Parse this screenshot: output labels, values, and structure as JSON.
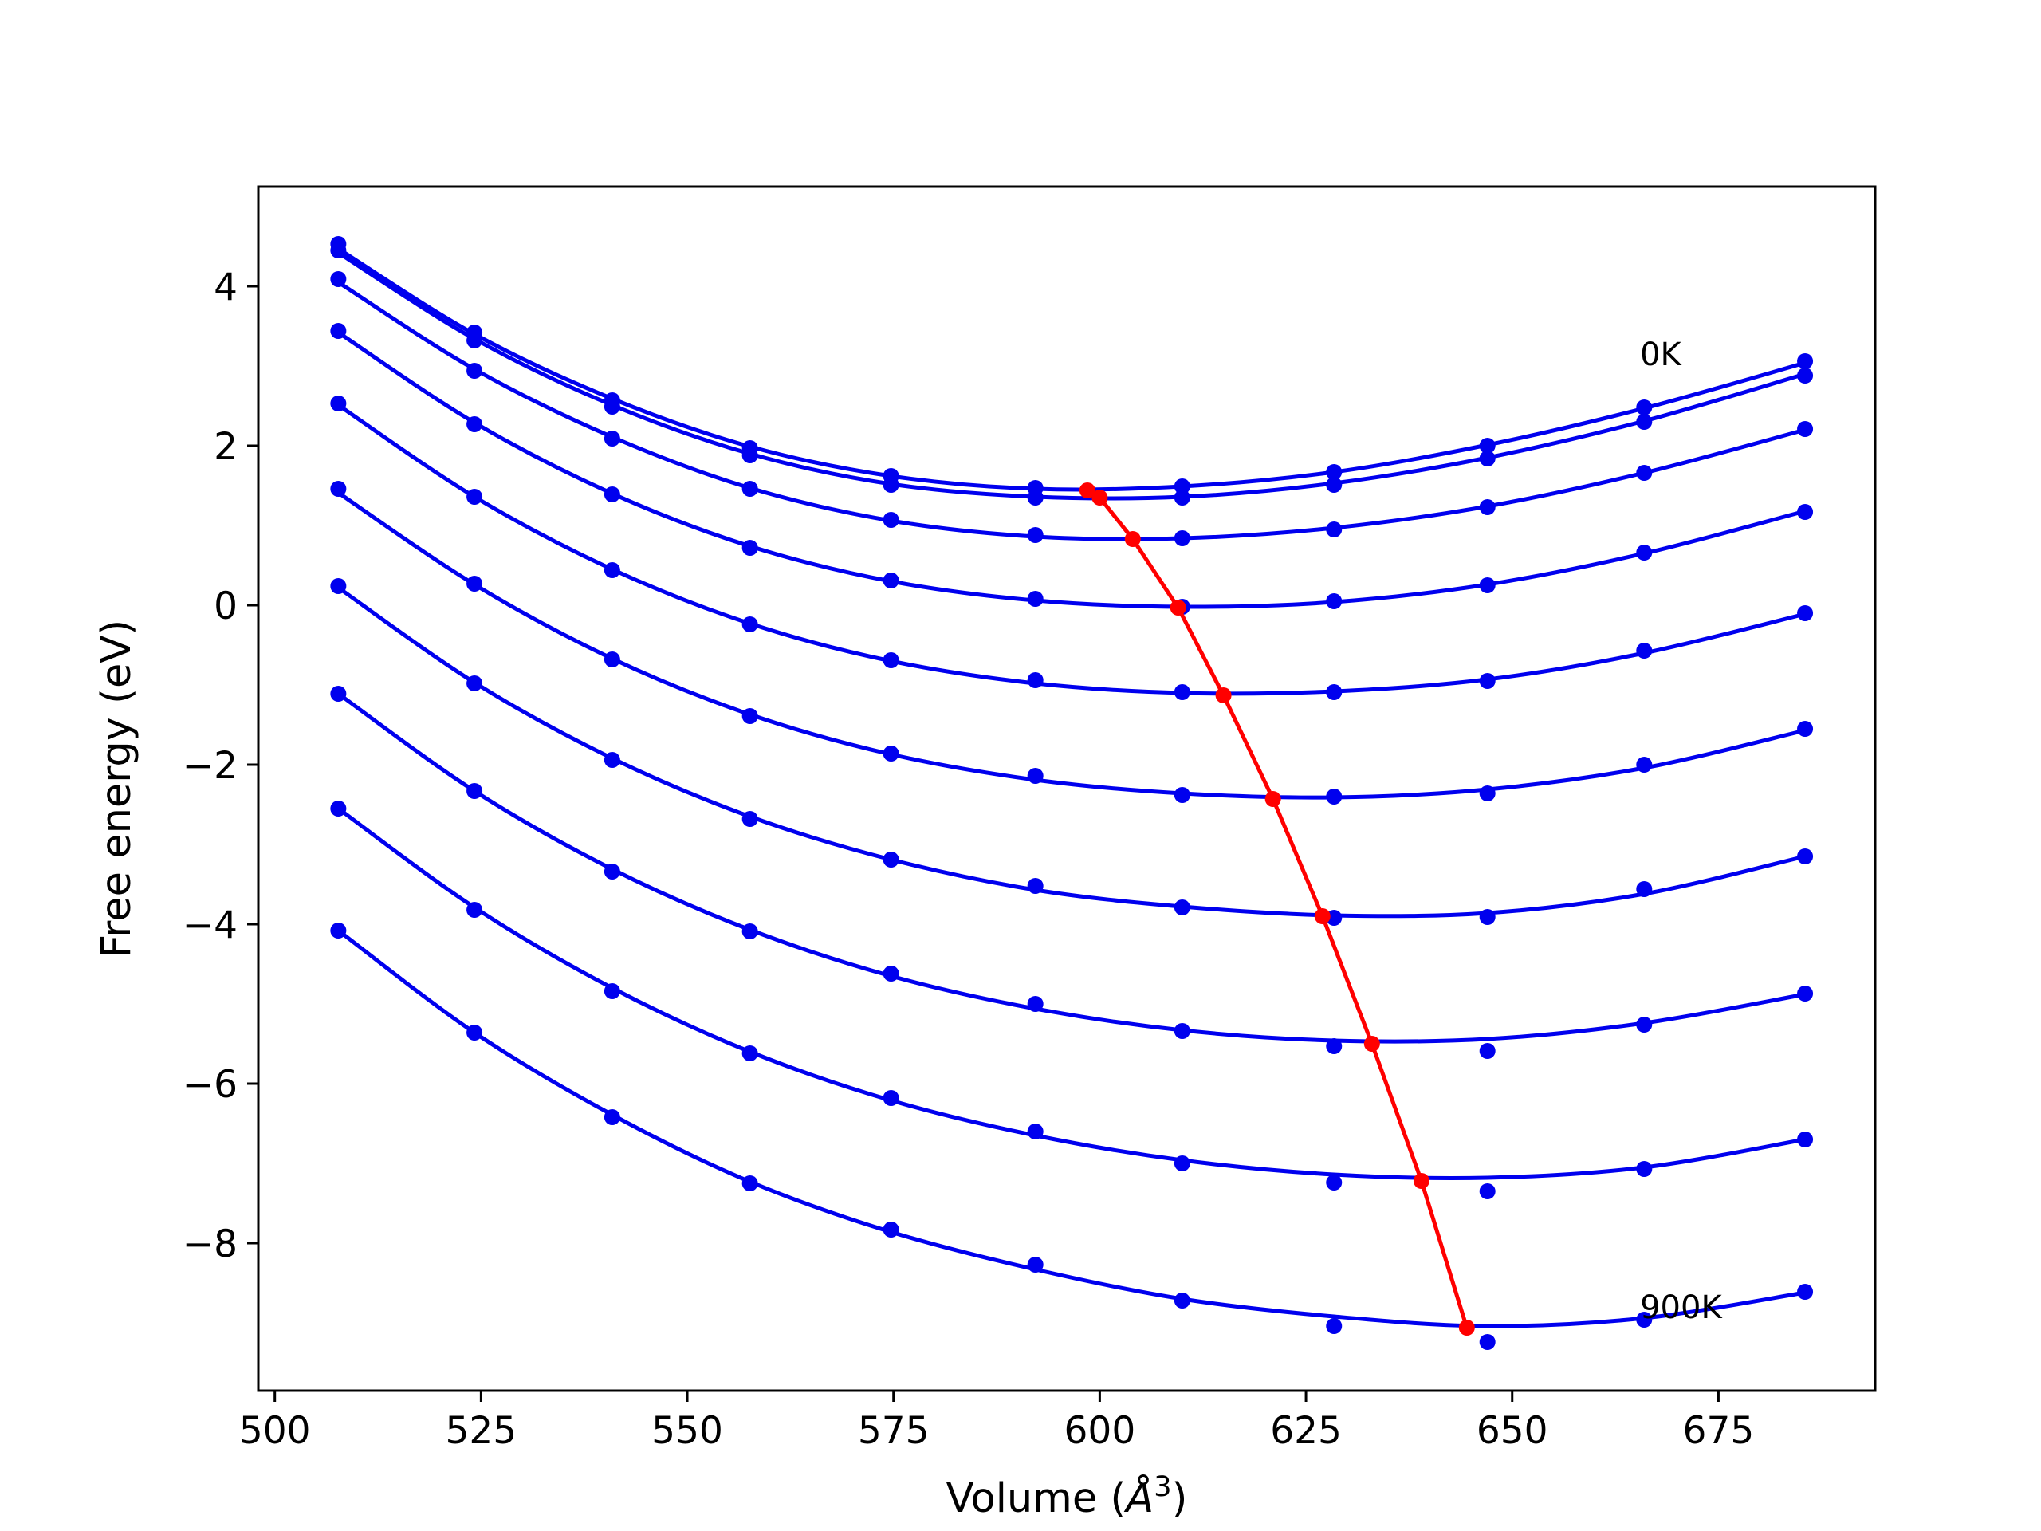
{
  "chart_data": {
    "type": "line",
    "title": "",
    "xlabel": "Volume (",
    "xlabel_symbol": "Å",
    "xlabel_exponent": "3",
    "xlabel_close": ")",
    "ylabel": "Free energy (eV)",
    "xlim": [
      498,
      694
    ],
    "ylim": [
      -9.85,
      5.25
    ],
    "xticks": [
      500,
      525,
      550,
      575,
      600,
      625,
      650,
      675
    ],
    "yticks": [
      -8,
      -6,
      -4,
      -2,
      0,
      2,
      4
    ],
    "ytick_labels": [
      "−8",
      "−6",
      "−4",
      "−2",
      "0",
      "2",
      "4"
    ],
    "grid": false,
    "legend": null,
    "colors": {
      "curves": "#0000ee",
      "points": "#0000ee",
      "minimum_path": "#ff0000",
      "axes": "#000000"
    },
    "annotations": [
      {
        "text": "0K",
        "x": 665.5,
        "y": 3.15
      },
      {
        "text": "900K",
        "x": 665.5,
        "y": -8.8
      }
    ],
    "x": [
      507.7,
      524.2,
      540.9,
      557.6,
      574.7,
      592.2,
      610.0,
      628.4,
      647.0,
      666.0,
      685.5
    ],
    "series": [
      {
        "points": [
          4.53,
          3.42,
          2.57,
          1.97,
          1.62,
          1.47,
          1.49,
          1.67,
          2.0,
          2.48,
          3.06
        ],
        "fit": [
          4.47,
          3.4,
          2.59,
          1.99,
          1.62,
          1.46,
          1.49,
          1.67,
          2.01,
          2.47,
          3.04
        ]
      },
      {
        "points": [
          4.45,
          3.32,
          2.49,
          1.88,
          1.51,
          1.35,
          1.35,
          1.51,
          1.84,
          2.3,
          2.88
        ],
        "fit": [
          4.42,
          3.34,
          2.51,
          1.9,
          1.52,
          1.36,
          1.36,
          1.53,
          1.85,
          2.31,
          2.9
        ]
      },
      {
        "points": [
          4.09,
          2.94,
          2.09,
          1.46,
          1.07,
          0.88,
          0.84,
          0.95,
          1.23,
          1.66,
          2.21
        ],
        "fit": [
          4.05,
          2.96,
          2.11,
          1.47,
          1.06,
          0.86,
          0.84,
          0.97,
          1.24,
          1.66,
          2.2
        ]
      },
      {
        "points": [
          3.44,
          2.27,
          1.39,
          0.72,
          0.31,
          0.08,
          -0.02,
          0.05,
          0.25,
          0.66,
          1.17
        ],
        "fit": [
          3.42,
          2.29,
          1.4,
          0.74,
          0.3,
          0.06,
          -0.02,
          0.04,
          0.26,
          0.65,
          1.18
        ]
      },
      {
        "points": [
          2.53,
          1.36,
          0.44,
          -0.24,
          -0.69,
          -0.94,
          -1.09,
          -1.09,
          -0.95,
          -0.57,
          -0.1
        ],
        "fit": [
          2.51,
          1.36,
          0.45,
          -0.23,
          -0.7,
          -0.98,
          -1.1,
          -1.08,
          -0.93,
          -0.6,
          -0.11
        ]
      },
      {
        "points": [
          1.46,
          0.27,
          -0.68,
          -1.39,
          -1.86,
          -2.14,
          -2.38,
          -2.4,
          -2.36,
          -2.0,
          -1.55
        ],
        "fit": [
          1.41,
          0.26,
          -0.67,
          -1.37,
          -1.87,
          -2.19,
          -2.36,
          -2.41,
          -2.31,
          -2.04,
          -1.57
        ]
      },
      {
        "points": [
          0.24,
          -0.98,
          -1.94,
          -2.68,
          -3.19,
          -3.52,
          -3.79,
          -3.92,
          -3.91,
          -3.56,
          -3.15
        ],
        "fit": [
          0.22,
          -0.97,
          -1.92,
          -2.65,
          -3.19,
          -3.57,
          -3.78,
          -3.89,
          -3.86,
          -3.62,
          -3.15
        ]
      },
      {
        "points": [
          -1.11,
          -2.33,
          -3.34,
          -4.09,
          -4.62,
          -5.0,
          -5.34,
          -5.53,
          -5.59,
          -5.26,
          -4.87
        ],
        "fit": [
          -1.11,
          -2.33,
          -3.31,
          -4.07,
          -4.65,
          -5.06,
          -5.33,
          -5.46,
          -5.44,
          -5.24,
          -4.88
        ]
      },
      {
        "points": [
          -2.55,
          -3.82,
          -4.84,
          -5.62,
          -6.18,
          -6.6,
          -7.0,
          -7.24,
          -7.35,
          -7.07,
          -6.7
        ],
        "fit": [
          -2.55,
          -3.79,
          -4.8,
          -5.6,
          -6.21,
          -6.65,
          -6.96,
          -7.14,
          -7.18,
          -7.05,
          -6.7
        ]
      },
      {
        "points": [
          -4.08,
          -5.36,
          -6.42,
          -7.25,
          -7.83,
          -8.27,
          -8.72,
          -9.04,
          -9.24,
          -8.96,
          -8.61
        ],
        "fit": [
          -4.08,
          -5.36,
          -6.39,
          -7.23,
          -7.86,
          -8.33,
          -8.7,
          -8.92,
          -9.04,
          -8.94,
          -8.62
        ]
      }
    ],
    "minimum_path": {
      "x": [
        598.5,
        600.0,
        604.0,
        609.5,
        615.0,
        621.0,
        627.0,
        633.0,
        639.0,
        644.5
      ],
      "y": [
        1.44,
        1.35,
        0.83,
        -0.03,
        -1.13,
        -2.43,
        -3.9,
        -5.5,
        -7.22,
        -9.06
      ]
    }
  }
}
